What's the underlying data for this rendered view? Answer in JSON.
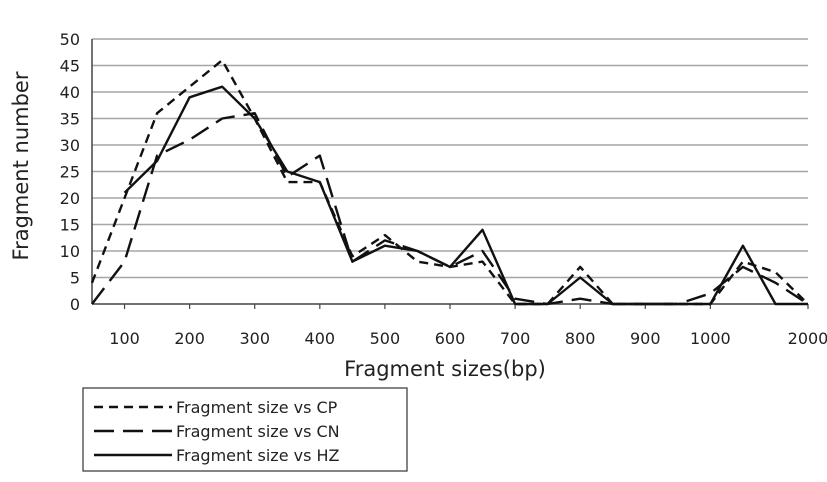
{
  "chart_data": {
    "type": "line",
    "title": "",
    "xlabel": "Fragment sizes(bp)",
    "ylabel": "Fragment number",
    "ylim": [
      0,
      50
    ],
    "y_ticks": [
      "0",
      "5",
      "10",
      "15",
      "20",
      "25",
      "30",
      "35",
      "40",
      "45",
      "50"
    ],
    "x_tick_labels": [
      "100",
      "200",
      "300",
      "400",
      "500",
      "600",
      "700",
      "800",
      "900",
      "1000",
      "2000"
    ],
    "grid": "horizontal",
    "legend_position": "bottom-left",
    "series": [
      {
        "name": "Fragment size vs CP",
        "dash": "dashed",
        "points": [
          [
            50,
            4
          ],
          [
            150,
            36
          ],
          [
            250,
            46
          ],
          [
            300,
            35
          ],
          [
            350,
            23
          ],
          [
            400,
            23
          ],
          [
            450,
            9
          ],
          [
            500,
            13
          ],
          [
            550,
            8
          ],
          [
            600,
            7
          ],
          [
            650,
            8
          ],
          [
            700,
            0
          ],
          [
            750,
            0
          ],
          [
            800,
            7
          ],
          [
            850,
            0
          ],
          [
            900,
            0
          ],
          [
            950,
            0
          ],
          [
            1000,
            0
          ],
          [
            1050,
            8
          ],
          [
            1100,
            6
          ],
          [
            1150,
            0
          ]
        ]
      },
      {
        "name": "Fragment size vs CN",
        "dash": "long-dash",
        "points": [
          [
            50,
            0
          ],
          [
            100,
            8
          ],
          [
            150,
            28
          ],
          [
            200,
            31
          ],
          [
            250,
            35
          ],
          [
            300,
            36
          ],
          [
            350,
            24
          ],
          [
            400,
            28
          ],
          [
            450,
            8
          ],
          [
            500,
            12
          ],
          [
            550,
            10
          ],
          [
            600,
            7
          ],
          [
            650,
            10
          ],
          [
            700,
            1
          ],
          [
            750,
            0
          ],
          [
            800,
            1
          ],
          [
            850,
            0
          ],
          [
            900,
            0
          ],
          [
            950,
            0
          ],
          [
            1000,
            2
          ],
          [
            1050,
            7
          ],
          [
            1100,
            4
          ],
          [
            1150,
            0
          ]
        ]
      },
      {
        "name": "Fragment size vs HZ",
        "dash": "solid",
        "points": [
          [
            100,
            21
          ],
          [
            150,
            27
          ],
          [
            200,
            39
          ],
          [
            250,
            41
          ],
          [
            300,
            35
          ],
          [
            350,
            25
          ],
          [
            400,
            23
          ],
          [
            450,
            8
          ],
          [
            500,
            11
          ],
          [
            550,
            10
          ],
          [
            600,
            7
          ],
          [
            650,
            14
          ],
          [
            700,
            0
          ],
          [
            750,
            0
          ],
          [
            800,
            5
          ],
          [
            850,
            0
          ],
          [
            900,
            0
          ],
          [
            950,
            0
          ],
          [
            1000,
            0
          ],
          [
            1050,
            11
          ],
          [
            1100,
            0
          ],
          [
            1150,
            0
          ]
        ]
      }
    ]
  }
}
